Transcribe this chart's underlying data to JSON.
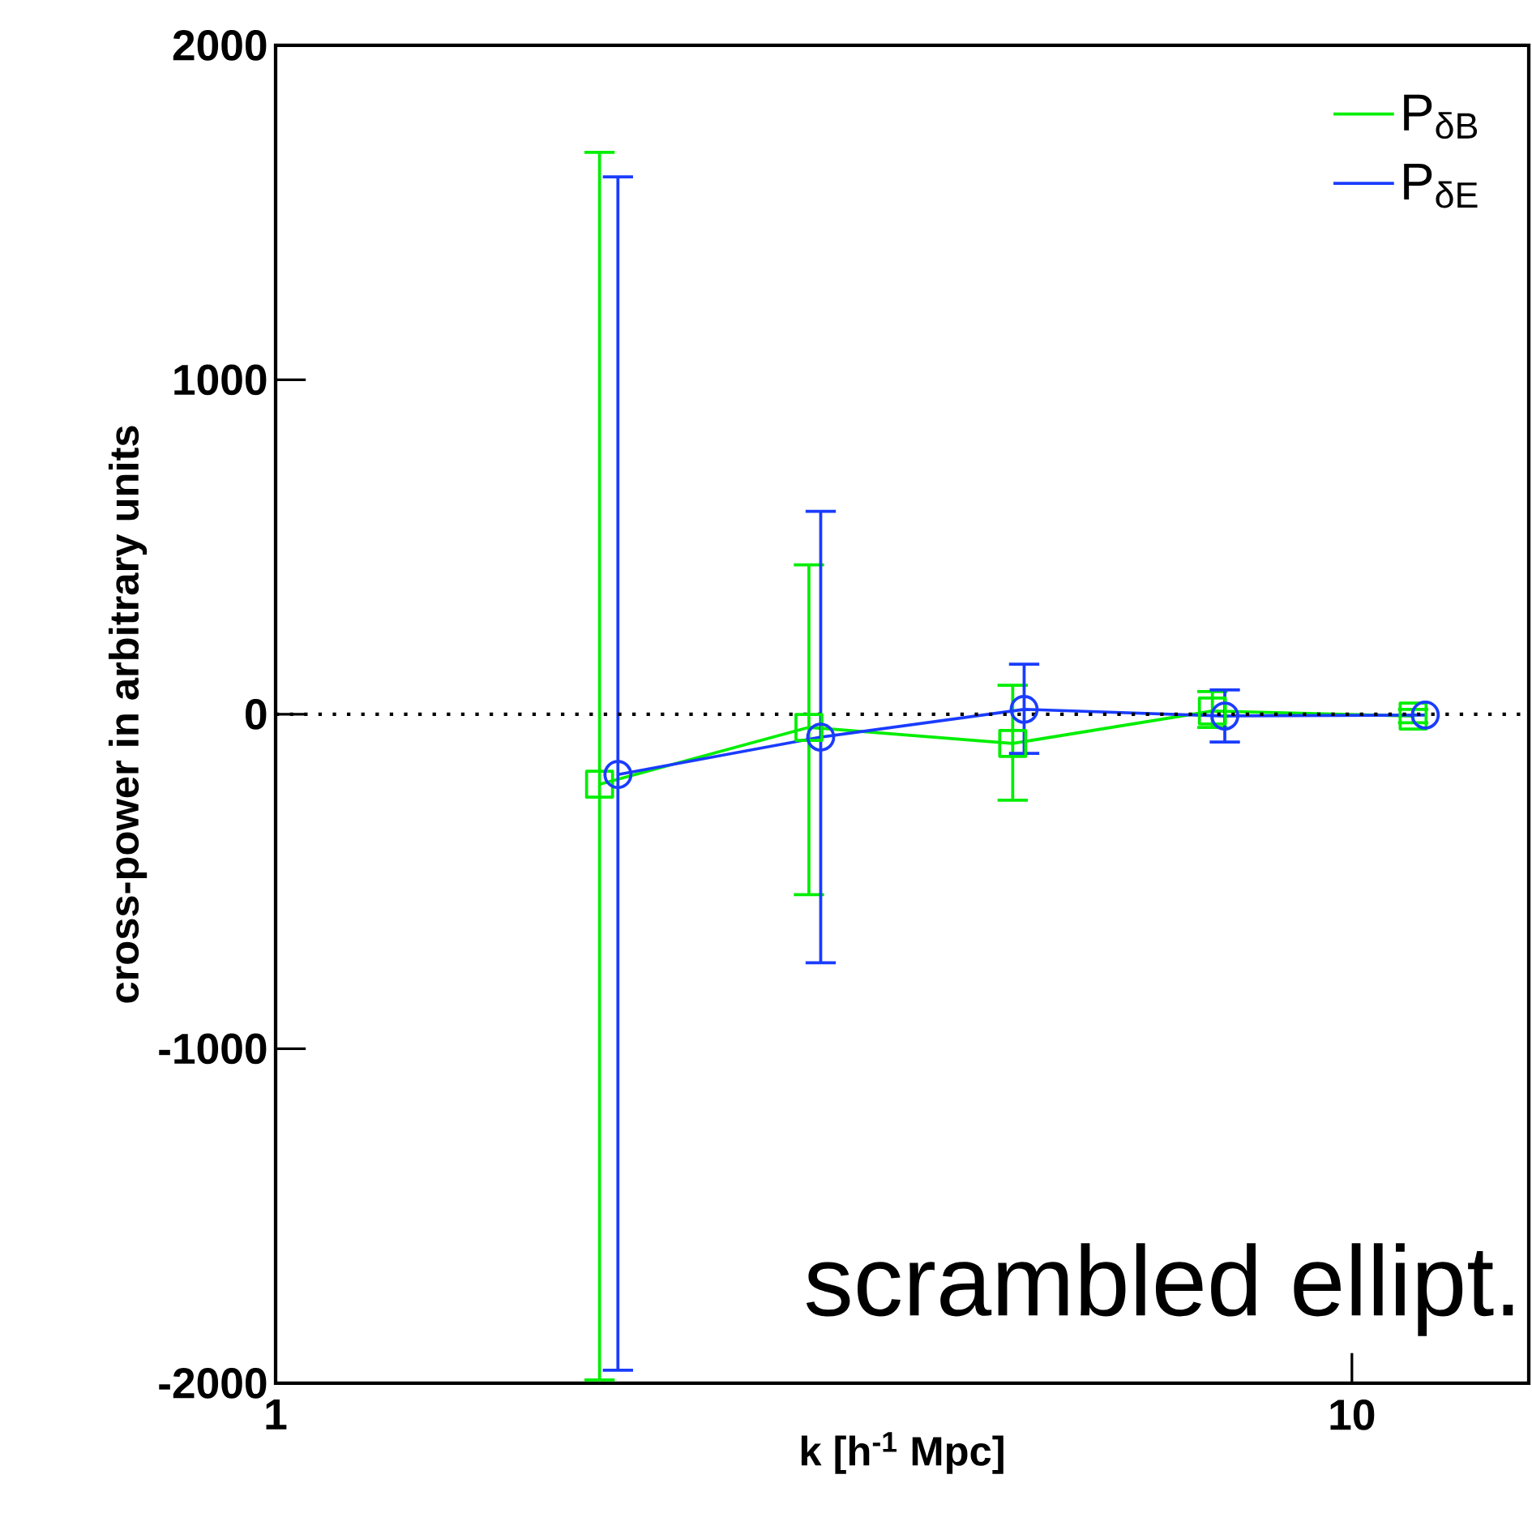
{
  "chart_data": {
    "type": "line",
    "xlabel": "k [h$^{-1}$ Mpc]",
    "ylabel": "cross-power in arbitrary units",
    "log": "x",
    "xlim": [
      1,
      14.6
    ],
    "ylim": [
      -2000,
      2000
    ],
    "xticks": [
      1,
      10
    ],
    "yticks": [
      -2000,
      -1000,
      0,
      1000,
      2000
    ],
    "series": [
      {
        "name": "P$_{δB}$",
        "color": "#00ee00",
        "marker": "square",
        "x": [
          2.0,
          3.13,
          4.84,
          7.42,
          11.4
        ],
        "values": [
          -209,
          -39,
          -87,
          10,
          -5
        ],
        "errors": [
          [
            -1990,
            1680
          ],
          [
            -539,
            447
          ],
          [
            -257,
            87
          ],
          [
            -39,
            68
          ],
          [
            -25,
            15
          ]
        ]
      },
      {
        "name": "P$_{δE}$",
        "color": "#1a3cff",
        "marker": "circle",
        "x": [
          2.08,
          3.21,
          4.96,
          7.62,
          11.7
        ],
        "values": [
          -180,
          -68,
          15,
          -5,
          -2
        ],
        "errors": [
          [
            -1961,
            1607
          ],
          [
            -743,
            607
          ],
          [
            -117,
            150
          ],
          [
            -83,
            73
          ],
          null
        ]
      }
    ],
    "ref_lines": [
      {
        "axis": "y",
        "value": 0,
        "line_style": "dotted",
        "color": "#000000"
      }
    ],
    "legend": "top right",
    "line_style": "solid",
    "annotations": [
      "scrambled ellipt."
    ]
  }
}
